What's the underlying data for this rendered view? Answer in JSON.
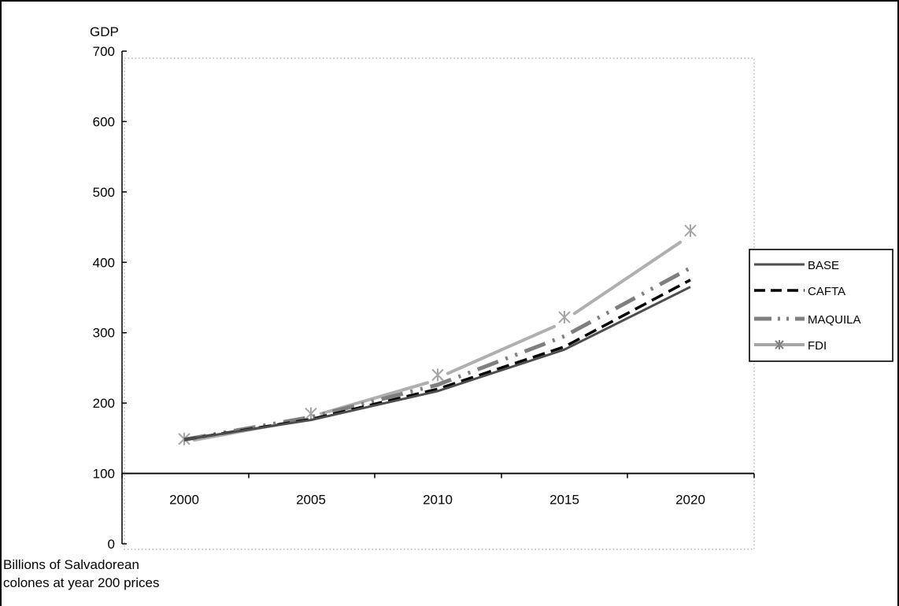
{
  "chart_data": {
    "type": "line",
    "title": "",
    "ylabel": "GDP",
    "xlabel": "",
    "units_note": [
      "Billions of Salvadorean",
      "colones at year 200 prices"
    ],
    "x": [
      2000,
      2005,
      2010,
      2015,
      2020
    ],
    "x_tick_labels": [
      "2000",
      "2005",
      "2010",
      "2015",
      "2020"
    ],
    "y_ticks": [
      0,
      100,
      200,
      300,
      400,
      500,
      600,
      700
    ],
    "ylim": [
      0,
      700
    ],
    "x_axis_crosses_at": 100,
    "grid": false,
    "legend_position": "right",
    "series": [
      {
        "name": "BASE",
        "values": [
          148,
          176,
          217,
          276,
          365
        ],
        "color": "#4d4d4d",
        "style": "solid"
      },
      {
        "name": "CAFTA",
        "values": [
          148,
          177,
          220,
          280,
          375
        ],
        "color": "#000000",
        "style": "dashed"
      },
      {
        "name": "MAQUILA",
        "values": [
          148,
          180,
          226,
          295,
          392
        ],
        "color": "#7f7f7f",
        "style": "dashdot"
      },
      {
        "name": "FDI",
        "values": [
          149,
          185,
          240,
          322,
          445
        ],
        "color": "#a6a6a6",
        "style": "marker-star"
      }
    ]
  }
}
